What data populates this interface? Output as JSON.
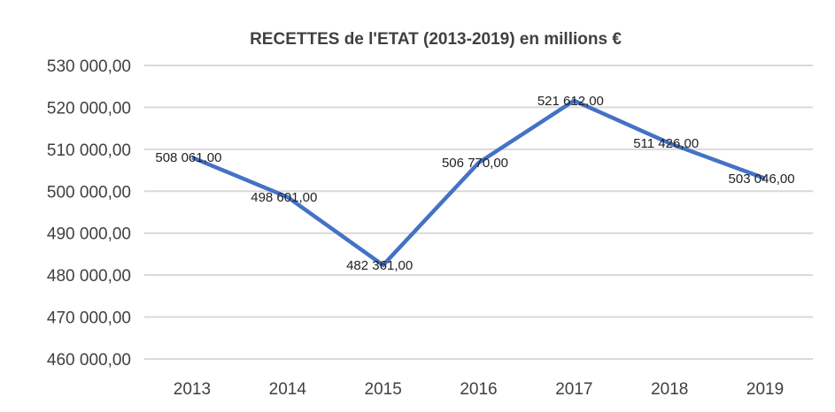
{
  "chart_data": {
    "type": "line",
    "title": "RECETTES de l'ETAT (2013-2019) en millions €",
    "xlabel": "",
    "ylabel": "",
    "categories": [
      "2013",
      "2014",
      "2015",
      "2016",
      "2017",
      "2018",
      "2019"
    ],
    "series": [
      {
        "values": [
          508061,
          498601,
          482361,
          506770,
          521612,
          511426,
          503046
        ]
      }
    ],
    "data_labels": [
      "508 061,00",
      "498 601,00",
      "482 361,00",
      "506 770,00",
      "521 612,00",
      "511 426,00",
      "503 046,00"
    ],
    "y_ticks": [
      530000,
      520000,
      510000,
      500000,
      490000,
      480000,
      470000,
      460000
    ],
    "y_tick_labels": [
      "530 000,00",
      "520 000,00",
      "510 000,00",
      "500 000,00",
      "490 000,00",
      "480 000,00",
      "470 000,00",
      "460 000,00"
    ],
    "ylim": [
      460000,
      530000
    ],
    "grid": true,
    "legend": "none",
    "colors": {
      "line": "#4472C4",
      "grid": "#D9D9D9",
      "text": "#404040"
    }
  }
}
